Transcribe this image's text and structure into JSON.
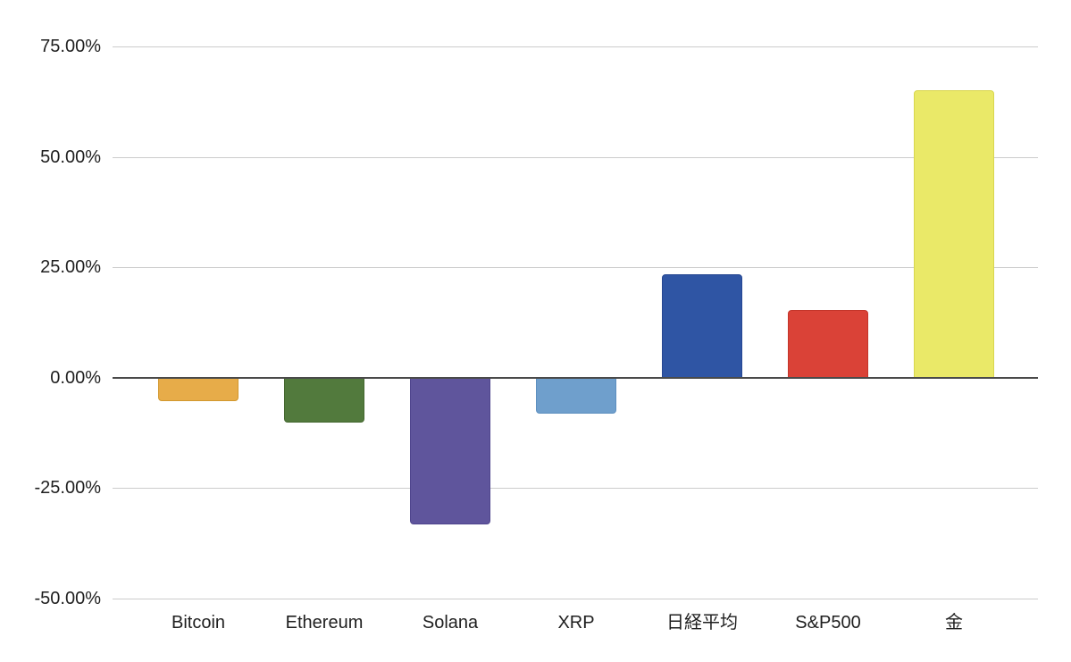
{
  "chart_data": {
    "type": "bar",
    "title": "",
    "xlabel": "",
    "ylabel": "",
    "legend": "none",
    "grid": true,
    "ylim": [
      -50,
      75
    ],
    "baseline_value": 0,
    "categories": [
      "Bitcoin",
      "Ethereum",
      "Solana",
      "XRP",
      "日経平均",
      "S&P500",
      "金"
    ],
    "values": [
      -5.2,
      -10.1,
      -33.2,
      -8.2,
      23.5,
      15.4,
      65.0
    ],
    "bar_colors": [
      "#E7AC49",
      "#527A3D",
      "#5F559C",
      "#6F9FCC",
      "#2F55A4",
      "#DA4237",
      "#EAE968"
    ],
    "bar_border_colors": [
      "#D2982F",
      "#44672F",
      "#4F458D",
      "#5D8FBF",
      "#264792",
      "#C4352A",
      "#D8D64E"
    ],
    "y_ticks": [
      {
        "value": 75,
        "label": "75.00%"
      },
      {
        "value": 50,
        "label": "50.00%"
      },
      {
        "value": 25,
        "label": "25.00%"
      },
      {
        "value": 0,
        "label": "0.00%"
      },
      {
        "value": -25,
        "label": "-25.00%"
      },
      {
        "value": -50,
        "label": "-50.00%"
      }
    ],
    "colors": {
      "background": "#ffffff",
      "gridline": "#cccccc",
      "baseline": "#4a4a4a",
      "tick_text": "#1f1f1f"
    }
  }
}
